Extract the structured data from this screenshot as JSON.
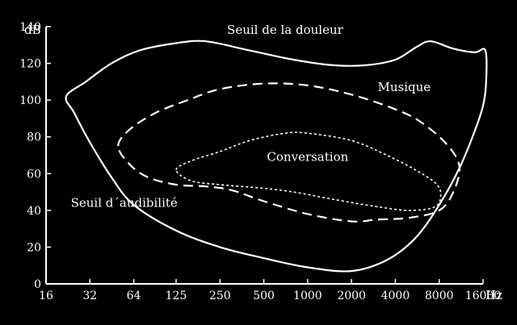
{
  "chart_data": {
    "type": "area",
    "title": "",
    "xlabel": "Hz",
    "ylabel": "dB",
    "x_scale": "log2",
    "xlim": [
      16,
      16000
    ],
    "ylim": [
      0,
      140
    ],
    "x_ticks": [
      16,
      32,
      64,
      125,
      250,
      500,
      1000,
      2000,
      4000,
      8000,
      16000
    ],
    "x_tick_labels": [
      "16",
      "32",
      "64",
      "125",
      "250",
      "500",
      "1000",
      "2000",
      "4000",
      "8000",
      "16000"
    ],
    "y_ticks": [
      0,
      20,
      40,
      60,
      80,
      100,
      120,
      140
    ],
    "y_tick_labels": [
      "0",
      "20",
      "40",
      "60",
      "80",
      "100",
      "120",
      "140"
    ],
    "colors": {
      "background": "#000000",
      "foreground": "#ffffff"
    },
    "regions": [
      {
        "name": "Seuil de la douleur",
        "style": "solid",
        "points": [
          [
            22,
            102
          ],
          [
            30,
            110
          ],
          [
            45,
            120
          ],
          [
            70,
            127
          ],
          [
            125,
            131
          ],
          [
            200,
            132
          ],
          [
            400,
            127
          ],
          [
            800,
            122
          ],
          [
            1500,
            119
          ],
          [
            2500,
            119
          ],
          [
            4000,
            122
          ],
          [
            5600,
            129
          ],
          [
            7000,
            132
          ],
          [
            10000,
            128
          ],
          [
            14000,
            126
          ],
          [
            16600,
            127
          ],
          [
            16800,
            110
          ],
          [
            16000,
            97
          ],
          [
            14000,
            83
          ],
          [
            11000,
            63
          ],
          [
            8000,
            43
          ],
          [
            5500,
            25
          ],
          [
            3500,
            13
          ],
          [
            2000,
            7
          ],
          [
            1000,
            9
          ],
          [
            500,
            14
          ],
          [
            250,
            20
          ],
          [
            125,
            29
          ],
          [
            64,
            43
          ],
          [
            45,
            58
          ],
          [
            32,
            77
          ],
          [
            25,
            93
          ],
          [
            22,
            102
          ]
        ]
      },
      {
        "name": "Musique",
        "style": "dashed",
        "points": [
          [
            50,
            75
          ],
          [
            60,
            84
          ],
          [
            90,
            93
          ],
          [
            150,
            100
          ],
          [
            250,
            106
          ],
          [
            500,
            109
          ],
          [
            1000,
            108
          ],
          [
            2000,
            103
          ],
          [
            4000,
            95
          ],
          [
            6000,
            88
          ],
          [
            9000,
            76
          ],
          [
            11000,
            64
          ],
          [
            10000,
            50
          ],
          [
            8000,
            40
          ],
          [
            5000,
            36
          ],
          [
            3000,
            35
          ],
          [
            2000,
            34
          ],
          [
            1000,
            38
          ],
          [
            500,
            45
          ],
          [
            300,
            51
          ],
          [
            200,
            53
          ],
          [
            125,
            54
          ],
          [
            80,
            58
          ],
          [
            60,
            65
          ],
          [
            50,
            75
          ]
        ]
      },
      {
        "name": "Conversation",
        "style": "dotted",
        "points": [
          [
            125,
            62
          ],
          [
            160,
            67
          ],
          [
            250,
            72
          ],
          [
            400,
            78
          ],
          [
            700,
            82
          ],
          [
            1000,
            82
          ],
          [
            2000,
            78
          ],
          [
            3500,
            70
          ],
          [
            5500,
            62
          ],
          [
            7500,
            55
          ],
          [
            8200,
            49
          ],
          [
            7500,
            42
          ],
          [
            5000,
            40
          ],
          [
            3000,
            42
          ],
          [
            1500,
            46
          ],
          [
            800,
            50
          ],
          [
            500,
            52
          ],
          [
            250,
            54
          ],
          [
            160,
            56
          ],
          [
            125,
            62
          ]
        ]
      }
    ],
    "annotations": [
      {
        "text": "Seuil de la douleur",
        "x": 700,
        "y": 136
      },
      {
        "text": "Musique",
        "x": 4600,
        "y": 105
      },
      {
        "text": "Conversation",
        "x": 1000,
        "y": 67
      },
      {
        "text": "Seuil d´audibilité",
        "x": 55,
        "y": 42
      }
    ]
  }
}
